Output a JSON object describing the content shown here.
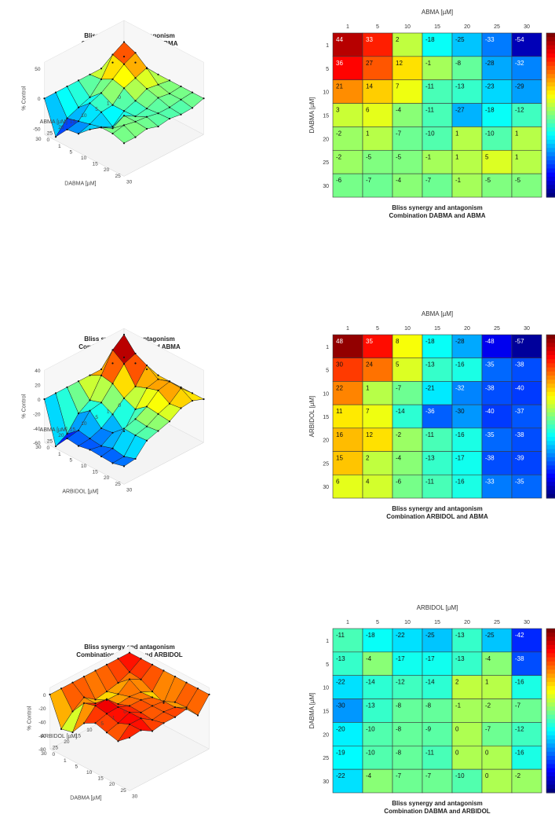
{
  "chart_data": [
    {
      "type": "surface",
      "title": "Bliss synergy and antagonism",
      "subtitle": "Combination DABMA and ABMA",
      "xlabel": "ABMA [µM]",
      "ylabel": "DABMA [µM]",
      "zlabel": "% Control",
      "x_ticks": [
        "0",
        "1",
        "5",
        "10",
        "15",
        "20",
        "25",
        "30"
      ],
      "y_ticks": [
        "0",
        "1",
        "5",
        "10",
        "15",
        "20",
        "25",
        "30"
      ],
      "z_ticks": [
        "50",
        "0",
        "-50"
      ],
      "zlim": [
        -60,
        60
      ]
    },
    {
      "type": "heatmap",
      "title": "Bliss synergy and antagonism",
      "subtitle": "Combination DABMA and ABMA",
      "xlabel": "ABMA [µM]",
      "ylabel": "DABMA [µM]",
      "x_categories": [
        "1",
        "5",
        "10",
        "15",
        "20",
        "25",
        "30"
      ],
      "y_categories": [
        "1",
        "5",
        "10",
        "15",
        "20",
        "25",
        "30"
      ],
      "values": [
        [
          44,
          33,
          2,
          -18,
          -25,
          -33,
          -54
        ],
        [
          36,
          27,
          12,
          -1,
          -8,
          -28,
          -32
        ],
        [
          21,
          14,
          7,
          -11,
          -13,
          -23,
          -29
        ],
        [
          3,
          6,
          -4,
          -11,
          -27,
          -18,
          -12
        ],
        [
          -2,
          1,
          -7,
          -10,
          1,
          -10,
          1
        ],
        [
          -2,
          -5,
          -5,
          -1,
          1,
          5,
          1
        ],
        [
          -6,
          -7,
          -4,
          -7,
          -1,
          -5,
          -5
        ]
      ]
    },
    {
      "type": "surface",
      "title": "Bliss synergy and antagonism",
      "subtitle": "Combination ARBIDOL and ABMA",
      "xlabel": "ABMA [µM]",
      "ylabel": "ARBIDOL [µM]",
      "zlabel": "% Control",
      "x_ticks": [
        "0",
        "1",
        "5",
        "10",
        "15",
        "20",
        "25",
        "30"
      ],
      "y_ticks": [
        "0",
        "1",
        "5",
        "10",
        "15",
        "20",
        "25",
        "30"
      ],
      "z_ticks": [
        "40",
        "20",
        "0",
        "-20",
        "-40",
        "-60"
      ],
      "zlim": [
        -60,
        40
      ]
    },
    {
      "type": "heatmap",
      "title": "Bliss synergy and antagonism",
      "subtitle": "Combination ARBIDOL and ABMA",
      "xlabel": "ABMA [µM]",
      "ylabel": "ARBIDOL [µM]",
      "x_categories": [
        "1",
        "5",
        "10",
        "15",
        "20",
        "25",
        "30"
      ],
      "y_categories": [
        "1",
        "5",
        "10",
        "15",
        "20",
        "25",
        "30"
      ],
      "values": [
        [
          48,
          35,
          8,
          -18,
          -28,
          -48,
          -57
        ],
        [
          30,
          24,
          5,
          -13,
          -16,
          -35,
          -38
        ],
        [
          22,
          1,
          -7,
          -21,
          -32,
          -38,
          -40
        ],
        [
          11,
          7,
          -14,
          -36,
          -30,
          -40,
          -37
        ],
        [
          16,
          12,
          -2,
          -11,
          -16,
          -35,
          -38
        ],
        [
          15,
          2,
          -4,
          -13,
          -17,
          -38,
          -39
        ],
        [
          6,
          4,
          -6,
          -11,
          -16,
          -33,
          -35
        ]
      ]
    },
    {
      "type": "surface",
      "title": "Bliss synergy and antagonism",
      "subtitle": "Combination DABMA and ARBIDOL",
      "xlabel": "ARBIDOL [µM]",
      "ylabel": "DABMA [µM]",
      "zlabel": "% Control",
      "x_ticks": [
        "0",
        "1",
        "5",
        "10",
        "15",
        "20",
        "25",
        "30"
      ],
      "y_ticks": [
        "0",
        "1",
        "5",
        "10",
        "15",
        "20",
        "25",
        "30"
      ],
      "z_ticks": [
        "0",
        "-20",
        "-40",
        "-60",
        "-80"
      ],
      "zlim": [
        -80,
        10
      ]
    },
    {
      "type": "heatmap",
      "title": "Bliss synergy and antagonism",
      "subtitle": "Combination DABMA and ARBIDOL",
      "xlabel": "ARBIDOL [µM]",
      "ylabel": "DABMA [µM]",
      "x_categories": [
        "1",
        "5",
        "10",
        "15",
        "20",
        "25",
        "30"
      ],
      "y_categories": [
        "1",
        "5",
        "10",
        "15",
        "20",
        "25",
        "30"
      ],
      "values": [
        [
          -11,
          -18,
          -22,
          -25,
          -13,
          -25,
          -42
        ],
        [
          -13,
          -4,
          -17,
          -17,
          -13,
          -4,
          -38
        ],
        [
          -22,
          -14,
          -12,
          -14,
          2,
          1,
          -16
        ],
        [
          -30,
          -13,
          -8,
          -8,
          -1,
          -2,
          -7
        ],
        [
          -20,
          -10,
          -8,
          -9,
          0,
          -7,
          -12
        ],
        [
          -19,
          -10,
          -8,
          -11,
          0,
          0,
          -16
        ],
        [
          -22,
          -4,
          -7,
          -7,
          -10,
          0,
          -2
        ]
      ]
    }
  ]
}
